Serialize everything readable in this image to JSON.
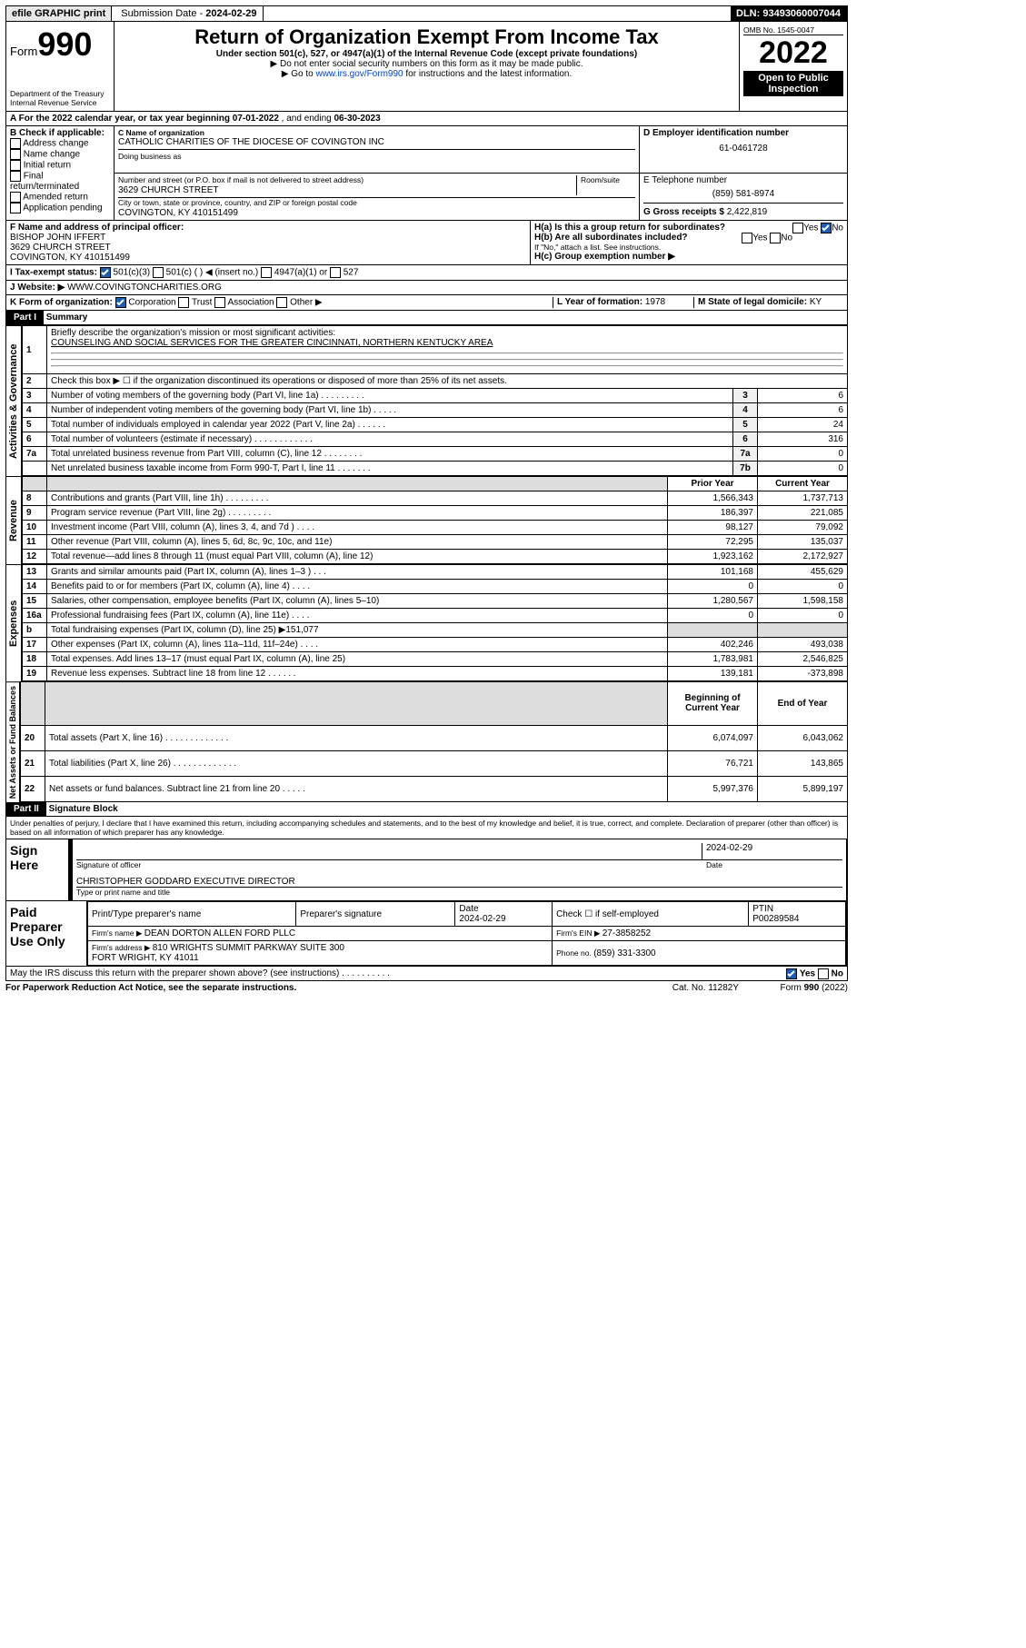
{
  "topbar": {
    "efile": "efile GRAPHIC print",
    "subdate_label": "Submission Date - ",
    "subdate": "2024-02-29",
    "dln_label": "DLN: ",
    "dln": "93493060007044"
  },
  "header": {
    "form_prefix": "Form",
    "form_no": "990",
    "dept": "Department of the Treasury\nInternal Revenue Service",
    "title": "Return of Organization Exempt From Income Tax",
    "sub1": "Under section 501(c), 527, or 4947(a)(1) of the Internal Revenue Code (except private foundations)",
    "sub2": "▶ Do not enter social security numbers on this form as it may be made public.",
    "sub3_pre": "▶ Go to ",
    "sub3_link": "www.irs.gov/Form990",
    "sub3_post": " for instructions and the latest information.",
    "omb": "OMB No. 1545-0047",
    "year": "2022",
    "inspect": "Open to Public Inspection"
  },
  "periodA": {
    "pre": "A For the 2022 calendar year, or tax year beginning ",
    "begin": "07-01-2022",
    "mid": " , and ending ",
    "end": "06-30-2023"
  },
  "boxB": {
    "label": "B Check if applicable:",
    "items": [
      "Address change",
      "Name change",
      "Initial return",
      "Final return/terminated",
      "Amended return",
      "Application pending"
    ]
  },
  "boxC": {
    "nameorg_label": "C Name of organization",
    "nameorg": "CATHOLIC CHARITIES OF THE DIOCESE OF COVINGTON INC",
    "dba_label": "Doing business as",
    "addr_label": "Number and street (or P.O. box if mail is not delivered to street address)",
    "room": "Room/suite",
    "addr": "3629 CHURCH STREET",
    "city_label": "City or town, state or province, country, and ZIP or foreign postal code",
    "city": "COVINGTON, KY  410151499"
  },
  "boxD": {
    "label": "D Employer identification number",
    "val": "61-0461728"
  },
  "boxE": {
    "label": "E Telephone number",
    "val": "(859) 581-8974"
  },
  "boxG": {
    "label": "G Gross receipts $ ",
    "val": "2,422,819"
  },
  "boxF": {
    "label": "F Name and address of principal officer:",
    "name": "BISHOP JOHN IFFERT",
    "addr": "3629 CHURCH STREET",
    "city": "COVINGTON, KY  410151499"
  },
  "boxH": {
    "ha": "H(a)  Is this a group return for subordinates?",
    "hb": "H(b)  Are all subordinates included?",
    "hb2": "If \"No,\" attach a list. See instructions.",
    "hc": "H(c)  Group exemption number ▶",
    "yes": "Yes",
    "no": "No"
  },
  "boxI": {
    "label": "I   Tax-exempt status:",
    "o1": "501(c)(3)",
    "o2": "501(c) (   ) ◀ (insert no.)",
    "o3": "4947(a)(1) or",
    "o4": "527"
  },
  "boxJ": {
    "label": "J   Website: ▶ ",
    "val": "WWW.COVINGTONCHARITIES.ORG"
  },
  "boxK": {
    "label": "K Form of organization:",
    "o1": "Corporation",
    "o2": "Trust",
    "o3": "Association",
    "o4": "Other ▶"
  },
  "boxL": {
    "label": "L Year of formation: ",
    "val": "1978"
  },
  "boxM": {
    "label": "M State of legal domicile: ",
    "val": "KY"
  },
  "part1": {
    "label": "Part I",
    "title": "Summary"
  },
  "sections": {
    "ag": "Activities & Governance",
    "rev": "Revenue",
    "exp": "Expenses",
    "na": "Net Assets or Fund Balances"
  },
  "lines": {
    "l1": {
      "n": "1",
      "t": "Briefly describe the organization's mission or most significant activities:",
      "v": "COUNSELING AND SOCIAL SERVICES FOR THE GREATER CINCINNATI, NORTHERN KENTUCKY AREA"
    },
    "l2": {
      "n": "2",
      "t": "Check this box ▶ ☐ if the organization discontinued its operations or disposed of more than 25% of its net assets."
    },
    "l3": {
      "n": "3",
      "t": "Number of voting members of the governing body (Part VI, line 1a)   .    .    .    .    .    .    .    .    .",
      "b": "3",
      "v": "6"
    },
    "l4": {
      "n": "4",
      "t": "Number of independent voting members of the governing body (Part VI, line 1b)   .    .    .    .    .",
      "b": "4",
      "v": "6"
    },
    "l5": {
      "n": "5",
      "t": "Total number of individuals employed in calendar year 2022 (Part V, line 2a)   .    .    .    .    .    .",
      "b": "5",
      "v": "24"
    },
    "l6": {
      "n": "6",
      "t": "Total number of volunteers (estimate if necessary)   .    .    .    .    .    .    .    .    .    .    .    .",
      "b": "6",
      "v": "316"
    },
    "l7a": {
      "n": "7a",
      "t": "Total unrelated business revenue from Part VIII, column (C), line 12   .    .    .    .    .    .    .    .",
      "b": "7a",
      "v": "0"
    },
    "l7b": {
      "n": "",
      "t": "Net unrelated business taxable income from Form 990-T, Part I, line 11   .    .    .    .    .    .    .",
      "b": "7b",
      "v": "0"
    },
    "hdr2": {
      "py": "Prior Year",
      "cy": "Current Year"
    },
    "l8": {
      "n": "8",
      "t": "Contributions and grants (Part VIII, line 1h)   .    .    .    .    .    .    .    .    .",
      "p": "1,566,343",
      "c": "1,737,713"
    },
    "l9": {
      "n": "9",
      "t": "Program service revenue (Part VIII, line 2g)   .    .    .    .    .    .    .    .    .",
      "p": "186,397",
      "c": "221,085"
    },
    "l10": {
      "n": "10",
      "t": "Investment income (Part VIII, column (A), lines 3, 4, and 7d )   .    .    .    .",
      "p": "98,127",
      "c": "79,092"
    },
    "l11": {
      "n": "11",
      "t": "Other revenue (Part VIII, column (A), lines 5, 6d, 8c, 9c, 10c, and 11e)",
      "p": "72,295",
      "c": "135,037"
    },
    "l12": {
      "n": "12",
      "t": "Total revenue—add lines 8 through 11 (must equal Part VIII, column (A), line 12)",
      "p": "1,923,162",
      "c": "2,172,927"
    },
    "l13": {
      "n": "13",
      "t": "Grants and similar amounts paid (Part IX, column (A), lines 1–3 )   .    .    .",
      "p": "101,168",
      "c": "455,629"
    },
    "l14": {
      "n": "14",
      "t": "Benefits paid to or for members (Part IX, column (A), line 4)   .    .    .    .",
      "p": "0",
      "c": "0"
    },
    "l15": {
      "n": "15",
      "t": "Salaries, other compensation, employee benefits (Part IX, column (A), lines 5–10)",
      "p": "1,280,567",
      "c": "1,598,158"
    },
    "l16a": {
      "n": "16a",
      "t": "Professional fundraising fees (Part IX, column (A), line 11e)   .    .    .    .",
      "p": "0",
      "c": "0"
    },
    "l16b": {
      "n": "b",
      "t": "Total fundraising expenses (Part IX, column (D), line 25) ▶151,077"
    },
    "l17": {
      "n": "17",
      "t": "Other expenses (Part IX, column (A), lines 11a–11d, 11f–24e)   .    .    .    .",
      "p": "402,246",
      "c": "493,038"
    },
    "l18": {
      "n": "18",
      "t": "Total expenses. Add lines 13–17 (must equal Part IX, column (A), line 25)",
      "p": "1,783,981",
      "c": "2,546,825"
    },
    "l19": {
      "n": "19",
      "t": "Revenue less expenses. Subtract line 18 from line 12   .    .    .    .    .    .",
      "p": "139,181",
      "c": "-373,898"
    },
    "hdr3": {
      "py": "Beginning of Current Year",
      "cy": "End of Year"
    },
    "l20": {
      "n": "20",
      "t": "Total assets (Part X, line 16)   .    .    .    .    .    .    .    .    .    .    .    .    .",
      "p": "6,074,097",
      "c": "6,043,062"
    },
    "l21": {
      "n": "21",
      "t": "Total liabilities (Part X, line 26)   .    .    .    .    .    .    .    .    .    .    .    .    .",
      "p": "76,721",
      "c": "143,865"
    },
    "l22": {
      "n": "22",
      "t": "Net assets or fund balances. Subtract line 21 from line 20   .    .    .    .    .",
      "p": "5,997,376",
      "c": "5,899,197"
    }
  },
  "part2": {
    "label": "Part II",
    "title": "Signature Block",
    "decl": "Under penalties of perjury, I declare that I have examined this return, including accompanying schedules and statements, and to the best of my knowledge and belief, it is true, correct, and complete. Declaration of preparer (other than officer) is based on all information of which preparer has any knowledge."
  },
  "sign": {
    "here": "Sign Here",
    "sigoff": "Signature of officer",
    "date": "Date",
    "sigdate": "2024-02-29",
    "name": "CHRISTOPHER GODDARD  EXECUTIVE DIRECTOR",
    "name_label": "Type or print name and title"
  },
  "paid": {
    "label": "Paid Preparer Use Only",
    "c1": "Print/Type preparer's name",
    "c2": "Preparer's signature",
    "c3": "Date",
    "c3v": "2024-02-29",
    "c4": "Check ☐ if self-employed",
    "c5": "PTIN",
    "c5v": "P00289584",
    "firm": "Firm's name    ▶ ",
    "firmv": "DEAN DORTON ALLEN FORD PLLC",
    "ein": "Firm's EIN ▶ ",
    "einv": "27-3858252",
    "addr": "Firm's address ▶ ",
    "addrv": "810 WRIGHTS SUMMIT PARKWAY SUITE 300\nFORT WRIGHT, KY  41011",
    "ph": "Phone no. ",
    "phv": "(859) 331-3300"
  },
  "footer": {
    "q": "May the IRS discuss this return with the preparer shown above? (see instructions)   .    .    .    .    .    .    .    .    .    .",
    "yes": "Yes",
    "no": "No",
    "pra": "For Paperwork Reduction Act Notice, see the separate instructions.",
    "cat": "Cat. No. 11282Y",
    "fn": "Form 990 (2022)"
  }
}
